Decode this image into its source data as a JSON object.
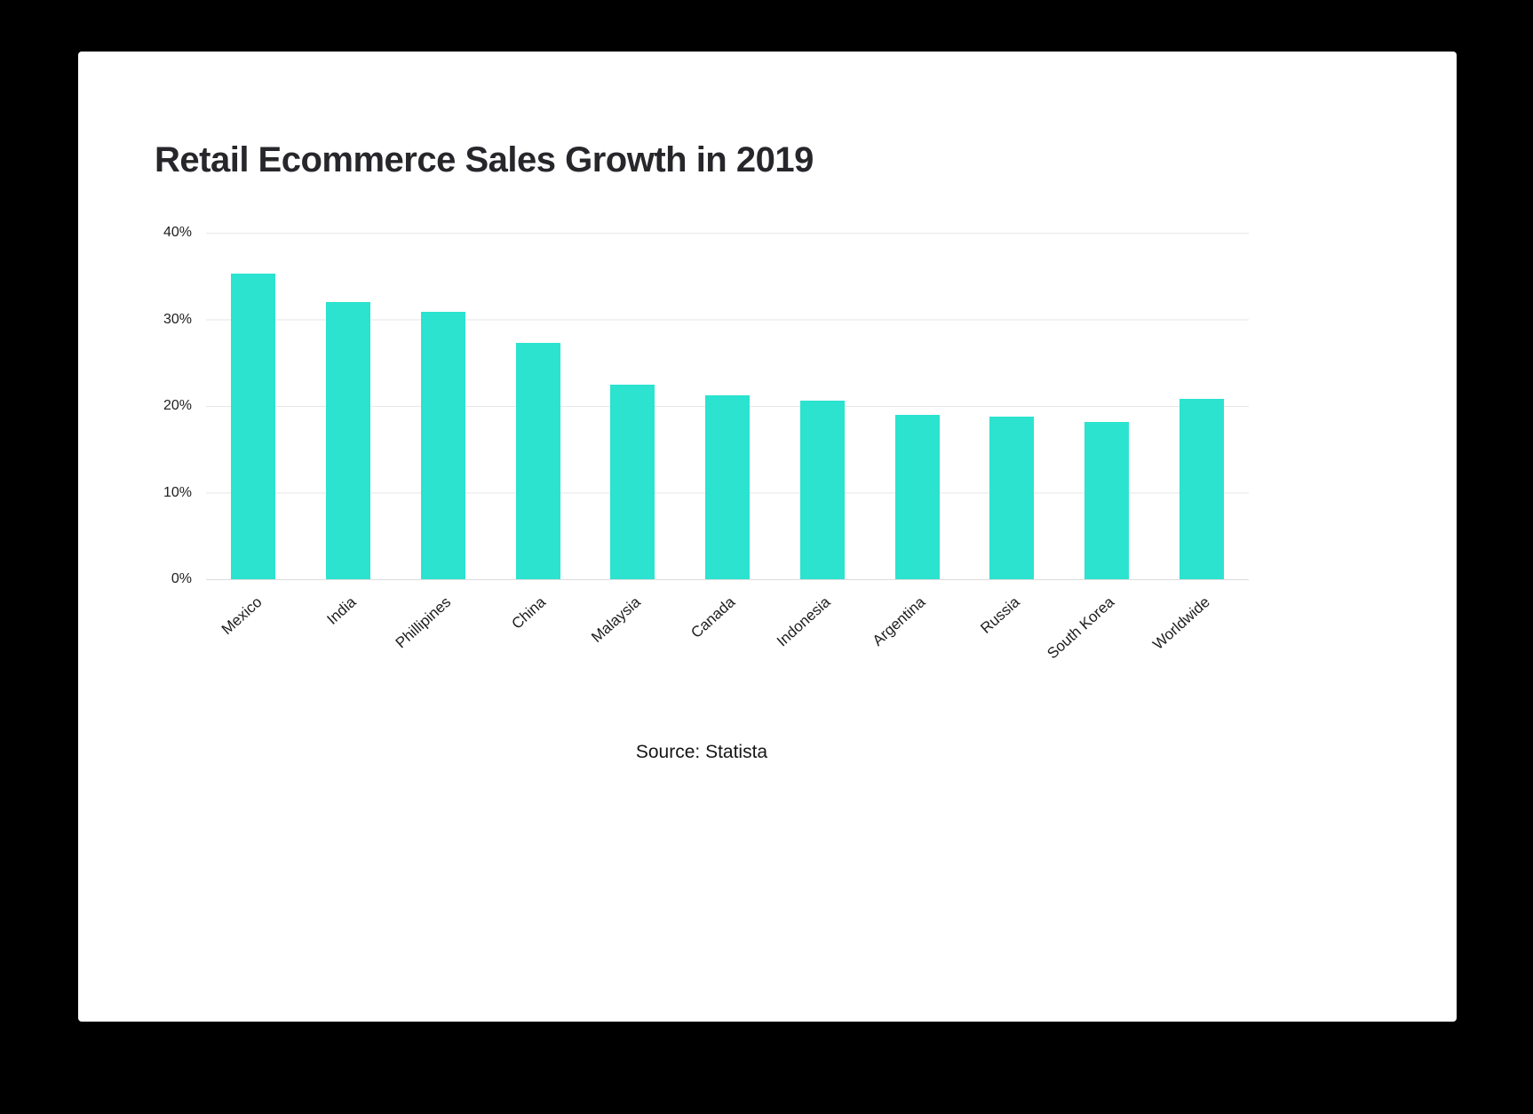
{
  "page": {
    "background_color": "#000000",
    "card_background_color": "#ffffff"
  },
  "chart_data": {
    "type": "bar",
    "title": "Retail Ecommerce Sales Growth in 2019",
    "source": "Source: Statista",
    "categories": [
      "Mexico",
      "India",
      "Phillipines",
      "China",
      "Malaysia",
      "Canada",
      "Indonesia",
      "Argentina",
      "Russia",
      "South Korea",
      "Worldwide"
    ],
    "values": [
      35.3,
      32.0,
      30.9,
      27.3,
      22.5,
      21.2,
      20.6,
      19.0,
      18.8,
      18.2,
      20.8
    ],
    "y_ticks": [
      "40%",
      "30%",
      "20%",
      "10%",
      "0%"
    ],
    "ylim": [
      0,
      40
    ],
    "grid": true,
    "legend": false,
    "bar_color": "#2BE3CF",
    "xlabel": "",
    "ylabel": ""
  }
}
